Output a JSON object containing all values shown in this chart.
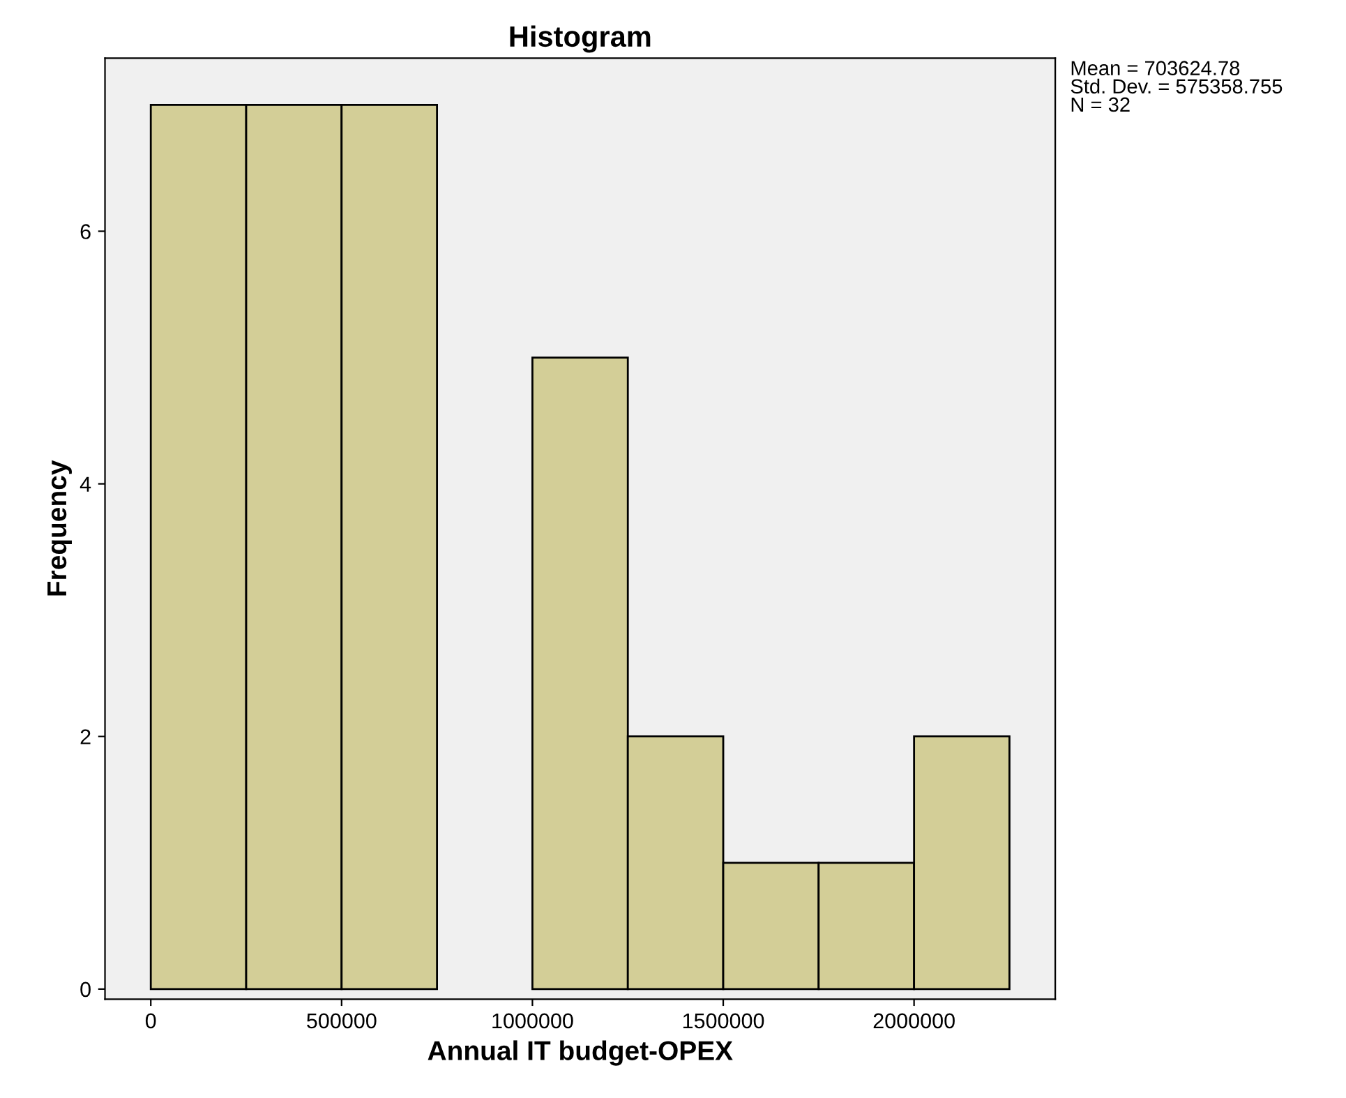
{
  "chart_data": {
    "type": "histogram",
    "title": "Histogram",
    "xlabel": "Annual IT budget-OPEX",
    "ylabel": "Frequency",
    "bins": [
      0,
      250000,
      500000,
      750000,
      1000000,
      1250000,
      1500000,
      1750000,
      2000000,
      2250000
    ],
    "values": [
      7,
      7,
      7,
      0,
      5,
      2,
      1,
      1,
      2
    ],
    "color": "#d3ce97",
    "xlim": [
      -120000,
      2370000
    ],
    "xticks": [
      0,
      500000,
      1000000,
      1500000,
      2000000
    ],
    "ylim": [
      -0.08,
      7.37
    ],
    "yticks": [
      0,
      2,
      4,
      6
    ],
    "annotations": [
      "Mean = 703624.78",
      "Std. Dev. = 575358.755",
      "N = 32"
    ],
    "grid": false,
    "legend": false
  }
}
